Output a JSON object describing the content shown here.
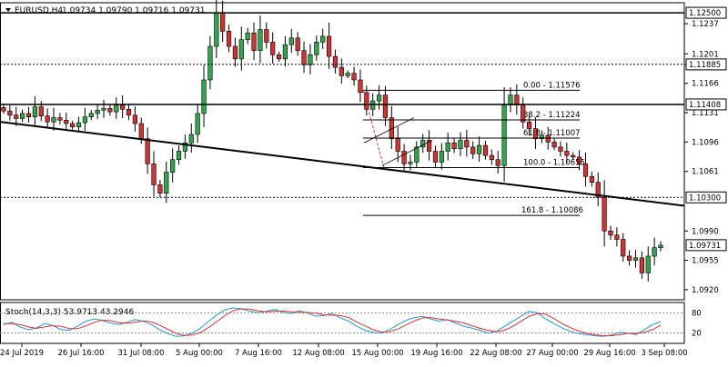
{
  "header": {
    "symbol_label": "EURUSD,H4",
    "ohlc_text": "1.09734 1.09790 1.09716 1.09731"
  },
  "chart_data": [
    {
      "type": "candlestick",
      "title": "EURUSD,H4",
      "ylim": [
        1.0908,
        1.1262
      ],
      "price_ticks": [
        1.1237,
        1.1201,
        1.11885,
        1.1166,
        1.1131,
        1.1096,
        1.1061,
        1.099,
        1.0955,
        1.092
      ],
      "x_labels": [
        "24 Jul 2019",
        "26 Jul 16:00",
        "31 Jul 08:00",
        "5 Aug 00:00",
        "7 Aug 16:00",
        "12 Aug 08:00",
        "15 Aug 00:00",
        "19 Aug 16:00",
        "22 Aug 08:00",
        "27 Aug 00:00",
        "29 Aug 16:00",
        "3 Sep 08:00"
      ],
      "horizontal_levels": [
        {
          "price": 1.125,
          "label": "1.12500",
          "style": "solid"
        },
        {
          "price": 1.11885,
          "label": "1.11885",
          "style": "dotted"
        },
        {
          "price": 1.11408,
          "label": "1.11408",
          "style": "solid"
        },
        {
          "price": 1.103,
          "label": "1.10300",
          "style": "dotted"
        }
      ],
      "current_price": {
        "price": 1.09731,
        "label": "1.09731"
      },
      "fibonacci": [
        {
          "price": 1.11576,
          "label": "0.00 - 1.11576"
        },
        {
          "price": 1.11224,
          "label": "38.2 - 1.11224"
        },
        {
          "price": 1.11007,
          "label": "61.8 - 1.11007"
        },
        {
          "price": 1.10655,
          "label": "100.0 - 1.10655"
        },
        {
          "price": 1.10086,
          "label": "161.8 - 1.10086"
        }
      ],
      "trendline": {
        "start_price": 1.112,
        "end_price": 1.102
      },
      "close_path": [
        1.1133,
        1.1128,
        1.1124,
        1.113,
        1.1126,
        1.1138,
        1.1127,
        1.112,
        1.1125,
        1.1122,
        1.1118,
        1.1114,
        1.1119,
        1.1126,
        1.113,
        1.1134,
        1.1136,
        1.1132,
        1.114,
        1.1135,
        1.1128,
        1.1118,
        1.11,
        1.107,
        1.1045,
        1.1035,
        1.106,
        1.1075,
        1.1085,
        1.1095,
        1.1105,
        1.113,
        1.117,
        1.121,
        1.125,
        1.1228,
        1.121,
        1.1195,
        1.1218,
        1.1226,
        1.1205,
        1.123,
        1.1215,
        1.12,
        1.1195,
        1.1212,
        1.122,
        1.1205,
        1.1188,
        1.12,
        1.1215,
        1.1222,
        1.1198,
        1.1185,
        1.1175,
        1.1178,
        1.117,
        1.1155,
        1.1135,
        1.1145,
        1.1152,
        1.1125,
        1.11,
        1.1085,
        1.107,
        1.1072,
        1.109,
        1.1098,
        1.1085,
        1.1072,
        1.1085,
        1.1095,
        1.1088,
        1.1098,
        1.109,
        1.1082,
        1.1092,
        1.108,
        1.1075,
        1.1068,
        1.114,
        1.1152,
        1.114,
        1.112,
        1.1112,
        1.11,
        1.1104,
        1.1096,
        1.109,
        1.1085,
        1.108,
        1.1078,
        1.107,
        1.1055,
        1.1048,
        1.103,
        1.099,
        1.0985,
        1.098,
        1.096,
        1.0955,
        1.0958,
        1.094,
        1.096,
        1.097,
        1.0973
      ]
    },
    {
      "type": "line",
      "title": "Stoch(14,3,3) 53.9713 43.2946",
      "ylim": [
        0,
        100
      ],
      "levels": [
        {
          "value": 80,
          "label": "80"
        },
        {
          "value": 20,
          "label": "20"
        }
      ],
      "series": [
        {
          "name": "Main",
          "color": "#1f9bd7",
          "values": [
            45,
            52,
            38,
            30,
            35,
            48,
            42,
            30,
            28,
            40,
            55,
            62,
            58,
            50,
            45,
            52,
            60,
            55,
            45,
            30,
            18,
            10,
            12,
            20,
            35,
            55,
            75,
            90,
            95,
            92,
            85,
            80,
            85,
            90,
            82,
            78,
            86,
            80,
            70,
            72,
            78,
            65,
            55,
            40,
            28,
            22,
            20,
            30,
            45,
            58,
            66,
            70,
            62,
            55,
            60,
            50,
            40,
            35,
            28,
            20,
            25,
            40,
            55,
            70,
            85,
            80,
            62,
            48,
            35,
            25,
            18,
            15,
            12,
            10,
            14,
            22,
            20,
            15,
            30,
            45,
            54
          ]
        },
        {
          "name": "Signal",
          "color": "#e03030",
          "values": [
            48,
            48,
            45,
            38,
            34,
            38,
            42,
            40,
            33,
            33,
            41,
            52,
            58,
            57,
            51,
            49,
            52,
            56,
            53,
            43,
            31,
            19,
            13,
            14,
            22,
            37,
            55,
            73,
            87,
            92,
            91,
            86,
            83,
            85,
            86,
            83,
            82,
            81,
            79,
            74,
            73,
            72,
            66,
            53,
            41,
            30,
            23,
            24,
            32,
            44,
            56,
            65,
            66,
            62,
            59,
            55,
            50,
            42,
            34,
            28,
            24,
            28,
            40,
            55,
            70,
            78,
            76,
            63,
            48,
            36,
            26,
            19,
            15,
            12,
            12,
            15,
            19,
            19,
            22,
            30,
            43
          ]
        }
      ]
    }
  ]
}
